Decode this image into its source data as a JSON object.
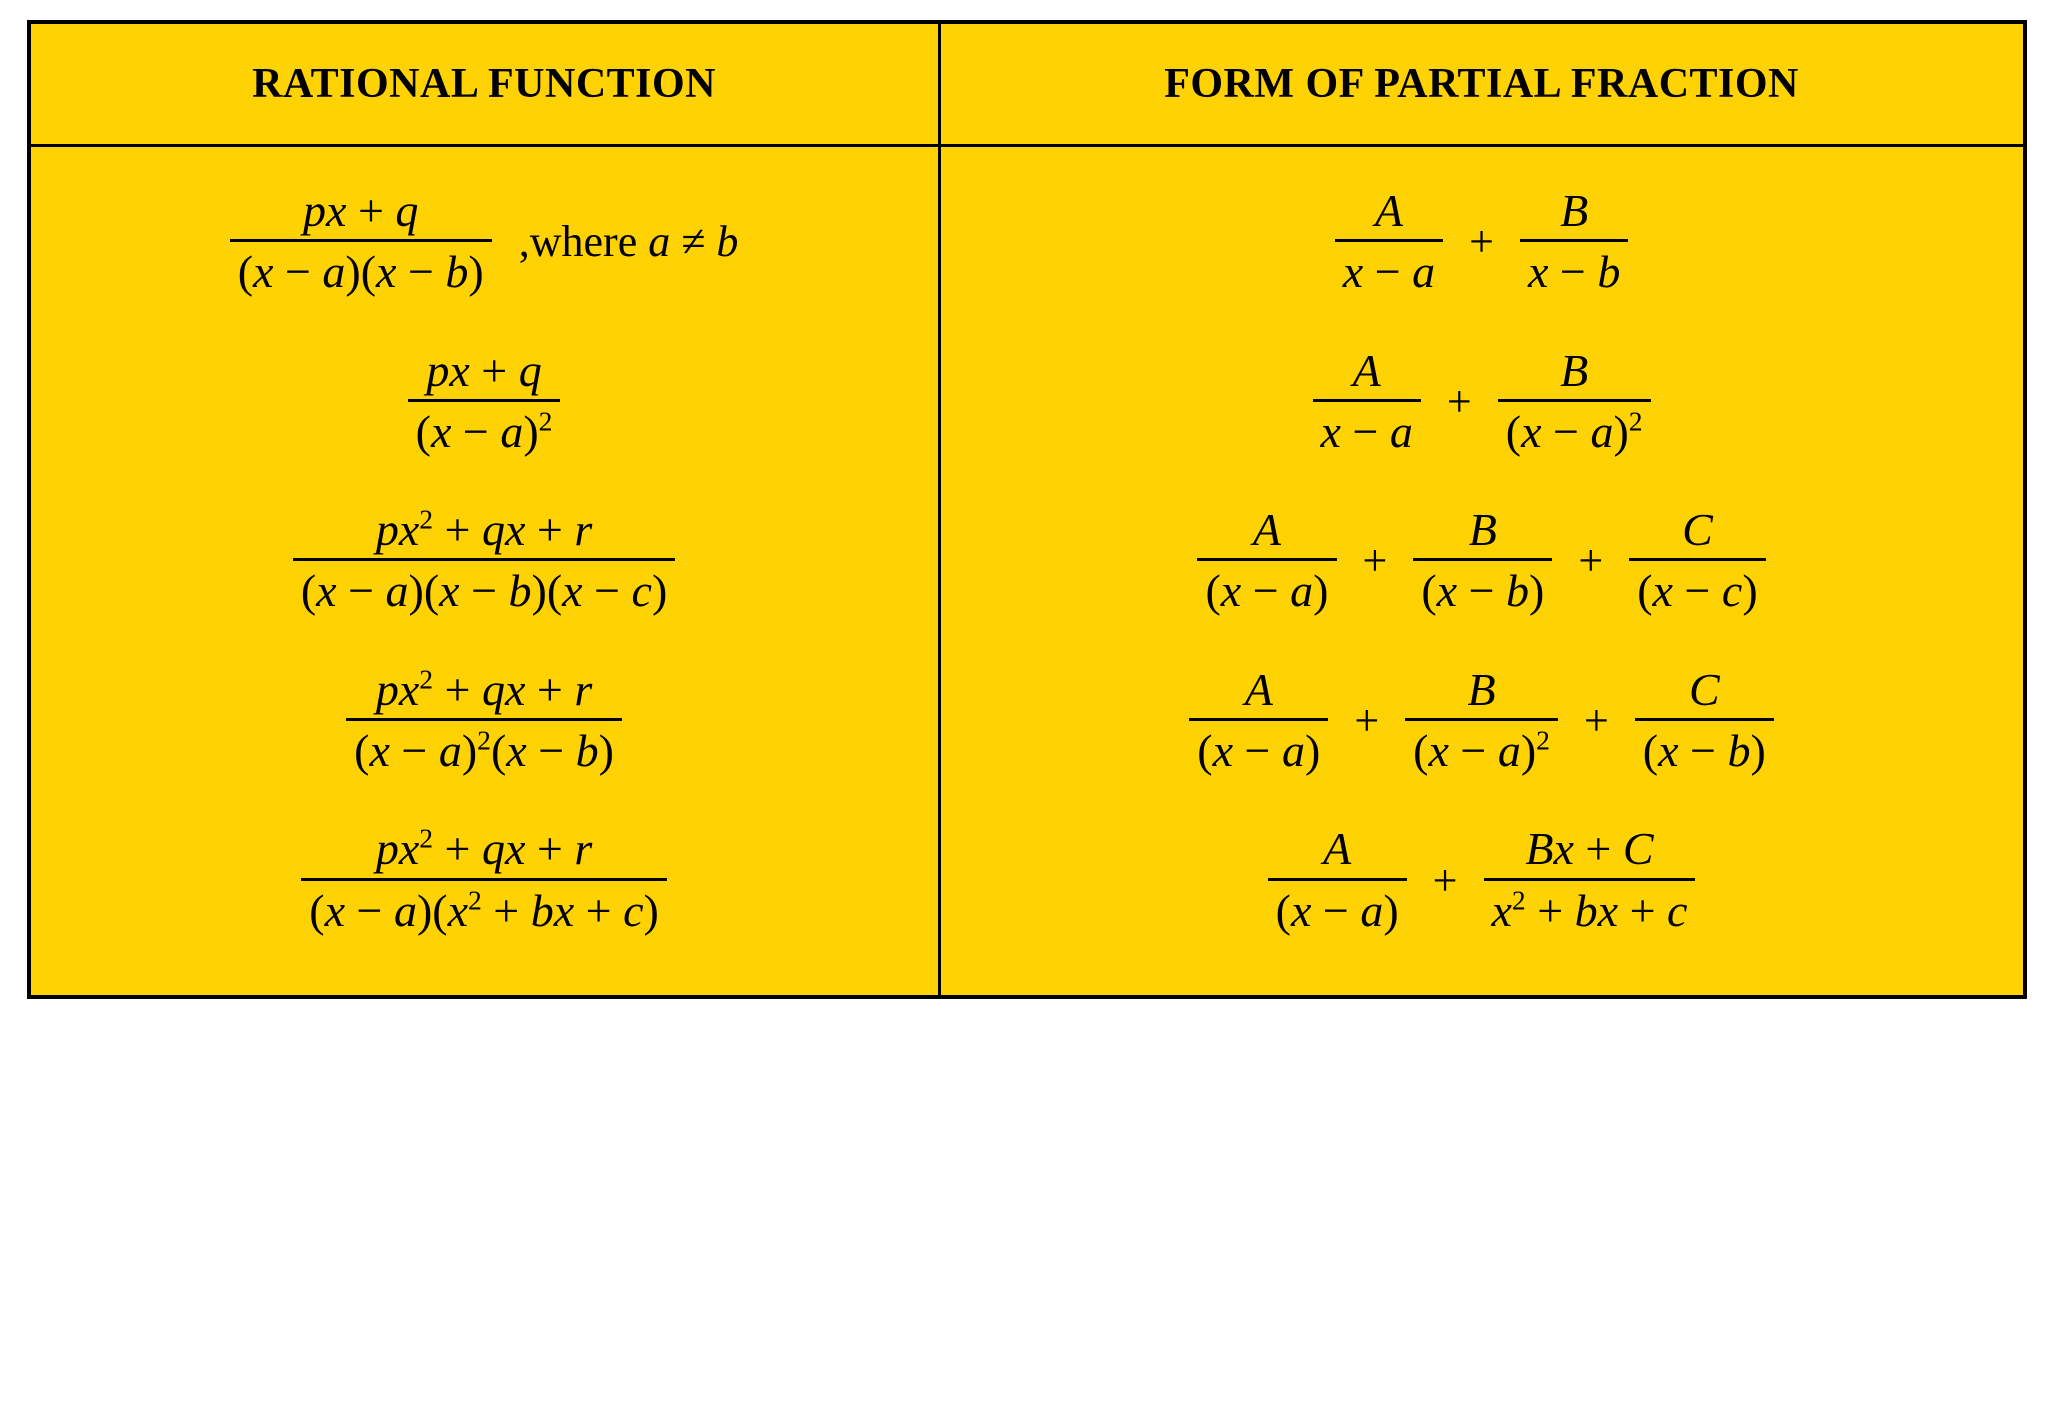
{
  "table": {
    "background_color": "#ffd203",
    "border_color": "#000000",
    "header_left": "RATIONAL FUNCTION",
    "header_right": "FORM OF PARTIAL FRACTION",
    "condition_prefix": ",where ",
    "neq": "≠",
    "rows": [
      {
        "left_num": "px + q",
        "left_den": "(x − a)(x − b)",
        "has_condition": true,
        "cond_l": "a",
        "cond_r": "b",
        "rterms": [
          {
            "num": "A",
            "den": "x − a"
          },
          {
            "num": "B",
            "den": "x − b"
          }
        ]
      },
      {
        "left_num": "px + q",
        "left_den_html": "(<span class='it'>x</span> − <span class='it'>a</span>)<sup>2</sup>",
        "rterms": [
          {
            "num": "A",
            "den": "x − a"
          },
          {
            "num": "B",
            "den_html": "(<span class='it'>x</span> − <span class='it'>a</span>)<sup>2</sup>"
          }
        ]
      },
      {
        "left_num_html": "<span class='it'>px</span><sup>2</sup> + <span class='it'>qx</span> + <span class='it'>r</span>",
        "left_den": "(x − a)(x − b)(x − c)",
        "rterms": [
          {
            "num": "A",
            "den": "(x − a)"
          },
          {
            "num": "B",
            "den": "(x − b)"
          },
          {
            "num": "C",
            "den": "(x − c)"
          }
        ]
      },
      {
        "left_num_html": "<span class='it'>px</span><sup>2</sup> + <span class='it'>qx</span> + <span class='it'>r</span>",
        "left_den_html": "(<span class='it'>x</span> − <span class='it'>a</span>)<sup>2</sup>(<span class='it'>x</span> − <span class='it'>b</span>)",
        "rterms": [
          {
            "num": "A",
            "den": "(x − a)"
          },
          {
            "num": "B",
            "den_html": "(<span class='it'>x</span> − <span class='it'>a</span>)<sup>2</sup>"
          },
          {
            "num": "C",
            "den": "(x − b)"
          }
        ]
      },
      {
        "left_num_html": "<span class='it'>px</span><sup>2</sup> + <span class='it'>qx</span> + <span class='it'>r</span>",
        "left_den_html": "(<span class='it'>x</span> − <span class='it'>a</span>)(<span class='it'>x</span><sup>2</sup> + <span class='it'>bx</span> + <span class='it'>c</span>)",
        "rterms": [
          {
            "num": "A",
            "den": "(x − a)"
          },
          {
            "num": "Bx + C",
            "den_html": "<span class='it'>x</span><sup>2</sup> + <span class='it'>bx</span> + <span class='it'>c</span>"
          }
        ]
      }
    ]
  }
}
